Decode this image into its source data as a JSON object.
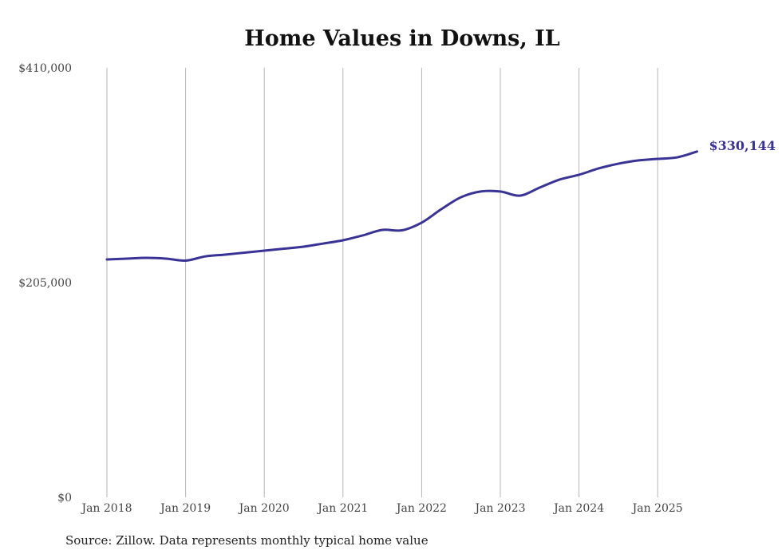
{
  "chart_data": {
    "type": "line",
    "title": "Home Values in Downs, IL",
    "source": "Source: Zillow. Data represents monthly typical home value",
    "xlabel": "",
    "ylabel": "",
    "ylim": [
      0,
      410000
    ],
    "xlim": [
      2018.0,
      2025.5
    ],
    "y_ticks": [
      0,
      205000,
      410000
    ],
    "y_tick_labels": [
      "$0",
      "$205,000",
      "$410,000"
    ],
    "x_ticks": [
      2018,
      2019,
      2020,
      2021,
      2022,
      2023,
      2024,
      2025
    ],
    "x_tick_labels": [
      "Jan 2018",
      "Jan 2019",
      "Jan 2020",
      "Jan 2021",
      "Jan 2022",
      "Jan 2023",
      "Jan 2024",
      "Jan 2025"
    ],
    "grid": "vertical",
    "end_label": "$330,144",
    "line_color": "#3a3396",
    "series": [
      {
        "name": "Home value",
        "x": [
          2018.0,
          2018.25,
          2018.5,
          2018.75,
          2019.0,
          2019.25,
          2019.5,
          2019.75,
          2020.0,
          2020.25,
          2020.5,
          2020.75,
          2021.0,
          2021.25,
          2021.5,
          2021.75,
          2022.0,
          2022.25,
          2022.5,
          2022.75,
          2023.0,
          2023.25,
          2023.5,
          2023.75,
          2024.0,
          2024.25,
          2024.5,
          2024.75,
          2025.0,
          2025.25,
          2025.5
        ],
        "values": [
          227100,
          227900,
          228600,
          227900,
          226000,
          230000,
          231700,
          233600,
          235500,
          237400,
          239300,
          242300,
          245400,
          250000,
          255300,
          254900,
          262200,
          275100,
          286500,
          292000,
          292000,
          288000,
          295700,
          303300,
          307900,
          314000,
          318500,
          321600,
          323100,
          324600,
          330144
        ]
      }
    ]
  }
}
